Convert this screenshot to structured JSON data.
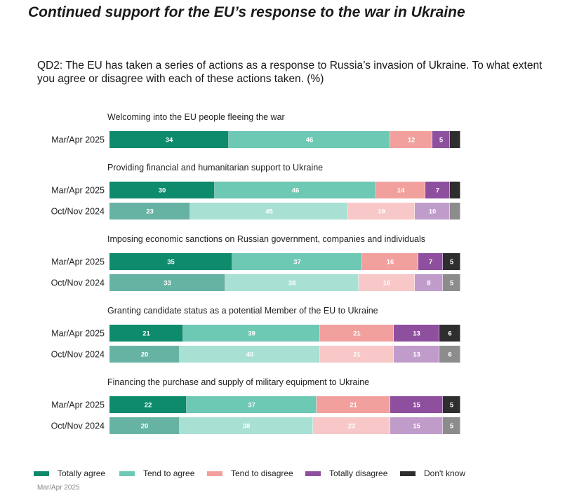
{
  "title": "Continued support for the EU’s response to the war in Ukraine",
  "question": "QD2: The EU has taken a series of actions as a response to Russia’s invasion of Ukraine. To what extent you agree or disagree with each of these actions taken. (%)",
  "footer": "Mar/Apr 2025",
  "chart_data": {
    "type": "bar",
    "orientation": "horizontal",
    "stacked": true,
    "xlim": [
      0,
      100
    ],
    "unit": "%",
    "legend_position": "bottom",
    "categories": [
      "Totally agree",
      "Tend to agree",
      "Tend to disagree",
      "Totally disagree",
      "Don't know"
    ],
    "colors": {
      "current": [
        "#0e8a6d",
        "#6dc8b4",
        "#f2a09e",
        "#8e4f9f",
        "#2e2e2e"
      ],
      "previous": [
        "#67b3a3",
        "#a8e0d4",
        "#f7c8c7",
        "#c09ccb",
        "#8c8c8c"
      ]
    },
    "groups": [
      {
        "label": "Welcoming into the EU people fleeing the war",
        "rows": [
          {
            "period": "Mar/Apr 2025",
            "style": "current",
            "values": [
              34,
              46,
              12,
              5,
              3
            ],
            "labels": [
              "34",
              "46",
              "12",
              "5",
              ""
            ]
          }
        ]
      },
      {
        "label": "Providing financial and humanitarian support to Ukraine",
        "rows": [
          {
            "period": "Mar/Apr 2025",
            "style": "current",
            "values": [
              30,
              46,
              14,
              7,
              3
            ],
            "labels": [
              "30",
              "46",
              "14",
              "7",
              ""
            ]
          },
          {
            "period": "Oct/Nov 2024",
            "style": "previous",
            "values": [
              23,
              45,
              19,
              10,
              3
            ],
            "labels": [
              "23",
              "45",
              "19",
              "10",
              ""
            ]
          }
        ]
      },
      {
        "label": "Imposing economic sanctions on Russian government, companies and individuals",
        "rows": [
          {
            "period": "Mar/Apr 2025",
            "style": "current",
            "values": [
              35,
              37,
              16,
              7,
              5
            ],
            "labels": [
              "35",
              "37",
              "16",
              "7",
              "5"
            ]
          },
          {
            "period": "Oct/Nov 2024",
            "style": "previous",
            "values": [
              33,
              38,
              16,
              8,
              5
            ],
            "labels": [
              "33",
              "38",
              "16",
              "8",
              "5"
            ]
          }
        ]
      },
      {
        "label": "Granting candidate status as a potential Member of the EU to Ukraine",
        "rows": [
          {
            "period": "Mar/Apr 2025",
            "style": "current",
            "values": [
              21,
              39,
              21,
              13,
              6
            ],
            "labels": [
              "21",
              "39",
              "21",
              "13",
              "6"
            ]
          },
          {
            "period": "Oct/Nov 2024",
            "style": "previous",
            "values": [
              20,
              40,
              21,
              13,
              6
            ],
            "labels": [
              "20",
              "40",
              "21",
              "13",
              "6"
            ]
          }
        ]
      },
      {
        "label": "Financing the purchase and supply of military equipment to Ukraine",
        "rows": [
          {
            "period": "Mar/Apr 2025",
            "style": "current",
            "values": [
              22,
              37,
              21,
              15,
              5
            ],
            "labels": [
              "22",
              "37",
              "21",
              "15",
              "5"
            ]
          },
          {
            "period": "Oct/Nov 2024",
            "style": "previous",
            "values": [
              20,
              38,
              22,
              15,
              5
            ],
            "labels": [
              "20",
              "38",
              "22",
              "15",
              "5"
            ]
          }
        ]
      }
    ]
  }
}
